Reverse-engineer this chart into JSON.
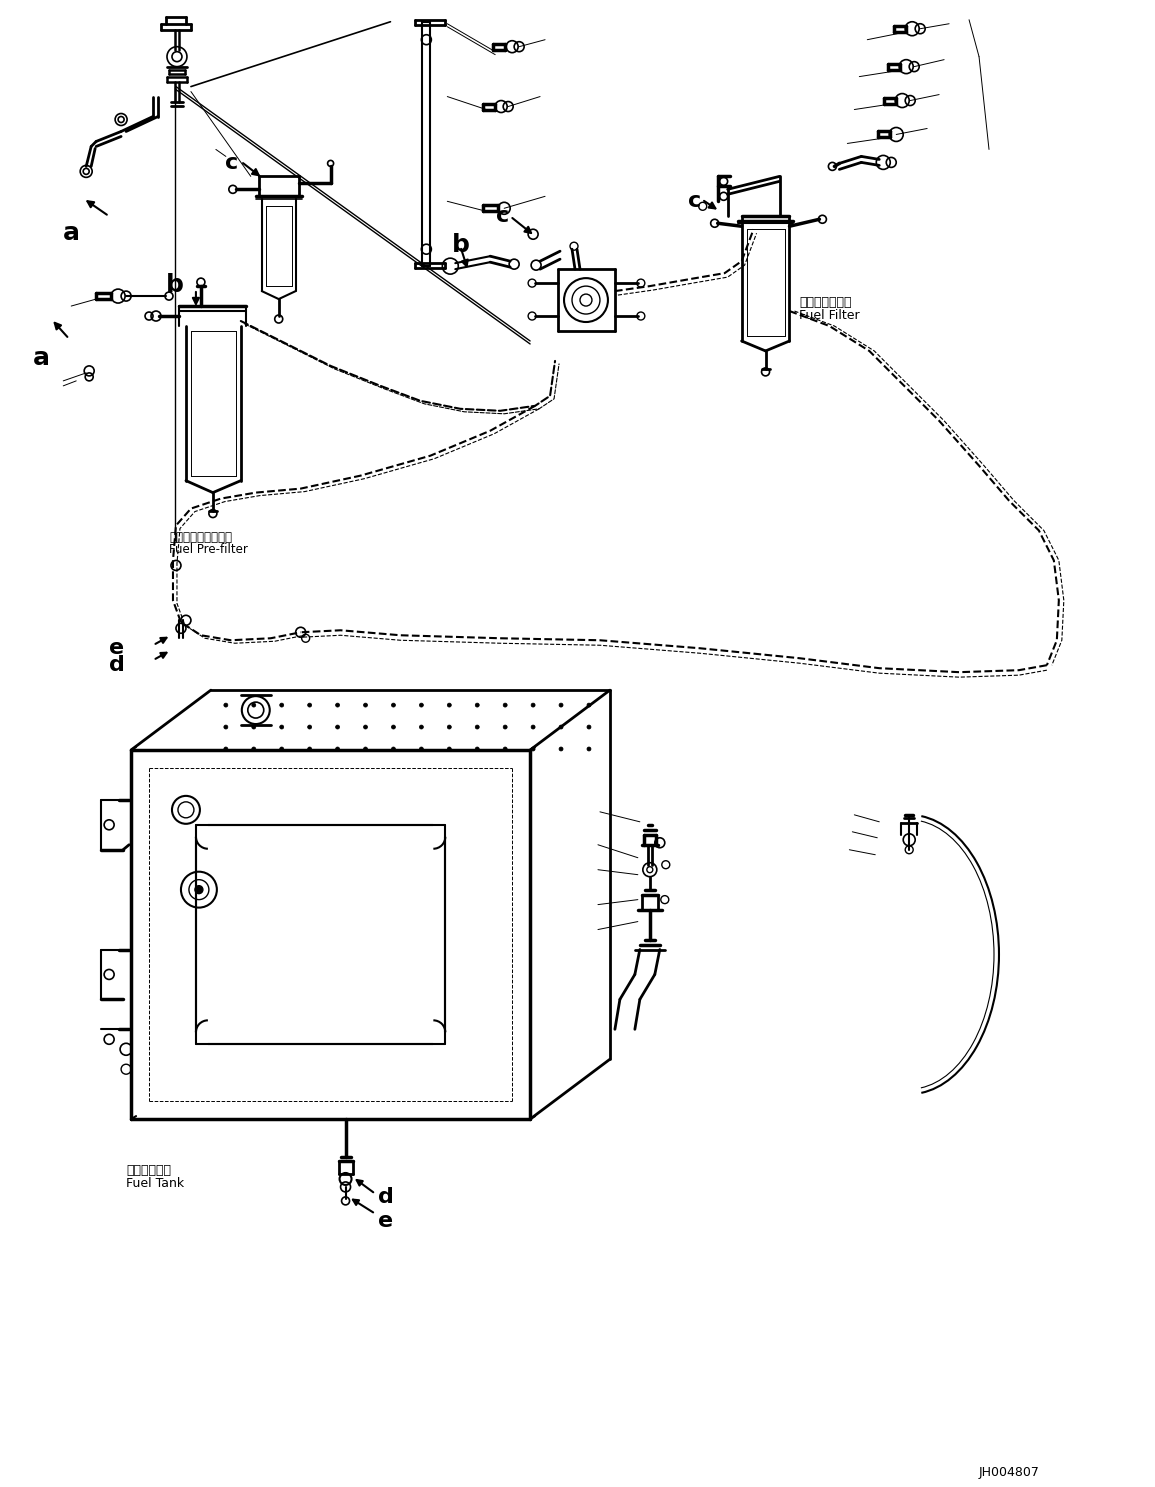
{
  "background_color": "#ffffff",
  "line_color": "#000000",
  "fig_width": 11.55,
  "fig_height": 14.87,
  "dpi": 100,
  "diagram_code": "JH004807",
  "labels": {
    "fuel_prefilter_jp": "フェルプレフィルタ",
    "fuel_prefilter_en": "Fuel Pre-filter",
    "fuel_filter_jp": "フェルフィルタ",
    "fuel_filter_en": "Fuel Filter",
    "fuel_tank_jp": "フェルタンク",
    "fuel_tank_en": "Fuel Tank"
  }
}
